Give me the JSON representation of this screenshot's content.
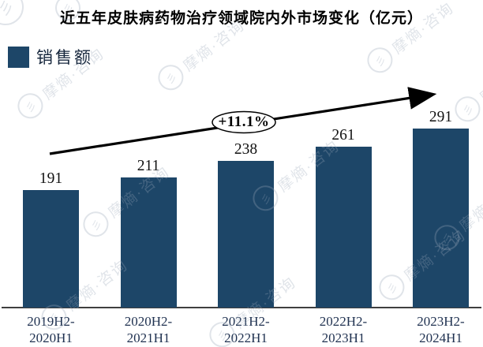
{
  "title": "近五年皮肤病药物治疗领域院内外市场变化（亿元）",
  "legend": {
    "label": "销售额",
    "swatch_color": "#1d4668"
  },
  "annotation": {
    "growth_label": "+11.1%"
  },
  "watermark": {
    "text": "摩熵·咨询",
    "logo_glyph": "彡"
  },
  "colors": {
    "bar": "#1d4668",
    "axis": "#3f3f3f",
    "tick_text": "#1f3150"
  },
  "chart_data": {
    "type": "bar",
    "title": "近五年皮肤病药物治疗领域院内外市场变化（亿元）",
    "series_name": "销售额",
    "unit": "亿元",
    "categories": [
      "2019H2-2020H1",
      "2020H2-2021H1",
      "2021H2-2022H1",
      "2022H2-2023H1",
      "2023H2-2024H1"
    ],
    "values": [
      191,
      211,
      238,
      261,
      291
    ],
    "bar_color": "#1d4668",
    "ylim": [
      0,
      300
    ],
    "grid": false,
    "legend_position": "top-left",
    "annotations": [
      {
        "type": "trend-arrow",
        "label": "+11.1%",
        "direction": "up-right"
      }
    ]
  }
}
